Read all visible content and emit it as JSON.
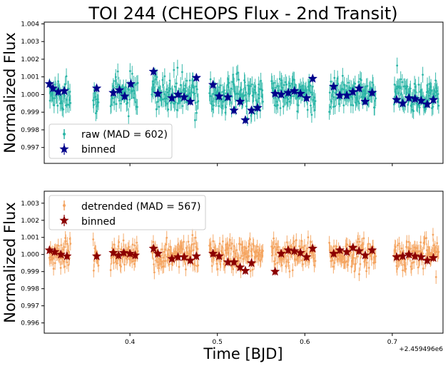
{
  "chart_data": [
    {
      "type": "scatter",
      "title": "TOI 244 (CHEOPS Flux - 2nd Transit)",
      "xlabel": "",
      "ylabel": "Normalized Flux",
      "xlim": [
        0.302,
        0.758
      ],
      "ylim": [
        0.9961,
        1.0041
      ],
      "xticks": [
        0.4,
        0.5,
        0.6,
        0.7
      ],
      "xtick_labels": [
        "",
        "",
        "",
        ""
      ],
      "yticks": [
        0.997,
        0.998,
        0.999,
        1.0,
        1.001,
        1.002,
        1.003,
        1.004
      ],
      "ytick_labels": [
        "0.997",
        "0.998",
        "0.999",
        "1.000",
        "1.001",
        "1.002",
        "1.003",
        "1.004"
      ],
      "legend": {
        "placement": "lower-left",
        "entries": [
          "raw (MAD = 602)",
          "binned"
        ]
      },
      "colors": {
        "raw": "#2ab5a6",
        "binned": "#00008b"
      },
      "raw_segments": [
        [
          0.308,
          0.332
        ],
        [
          0.358,
          0.364
        ],
        [
          0.378,
          0.409
        ],
        [
          0.425,
          0.478
        ],
        [
          0.491,
          0.552
        ],
        [
          0.562,
          0.612
        ],
        [
          0.628,
          0.681
        ],
        [
          0.702,
          0.753
        ]
      ],
      "raw_level": 1.0,
      "raw_scatter": 0.0009,
      "binned": {
        "x": [
          0.308,
          0.312,
          0.318,
          0.325,
          0.362,
          0.381,
          0.388,
          0.394,
          0.401,
          0.427,
          0.432,
          0.448,
          0.455,
          0.462,
          0.469,
          0.476,
          0.495,
          0.502,
          0.512,
          0.519,
          0.526,
          0.532,
          0.539,
          0.546,
          0.566,
          0.573,
          0.581,
          0.588,
          0.595,
          0.602,
          0.609,
          0.633,
          0.64,
          0.648,
          0.655,
          0.662,
          0.669,
          0.677,
          0.705,
          0.712,
          0.719,
          0.726,
          0.733,
          0.74,
          0.747
        ],
        "y": [
          1.0006,
          1.00035,
          1.00015,
          1.0002,
          1.00035,
          1.0001,
          1.00025,
          0.9999,
          1.0006,
          1.0013,
          1.00005,
          0.9998,
          1.0,
          0.99985,
          0.9996,
          1.00095,
          1.00055,
          0.9999,
          0.99985,
          0.9991,
          0.9996,
          0.99855,
          0.9991,
          0.99925,
          1.00005,
          1.0,
          1.0001,
          1.0002,
          1.00005,
          0.9998,
          1.0009,
          1.00045,
          0.99995,
          0.99995,
          1.00015,
          1.00035,
          0.9996,
          1.0001,
          0.9997,
          0.9995,
          0.9998,
          0.99975,
          0.99965,
          0.99945,
          0.9997
        ]
      }
    },
    {
      "type": "scatter",
      "title": "",
      "xlabel": "Time [BJD]",
      "ylabel": "Normalized Flux",
      "x_offset_label": "+2.459496e6",
      "xlim": [
        0.302,
        0.758
      ],
      "ylim": [
        0.9954,
        1.0037
      ],
      "xticks": [
        0.4,
        0.5,
        0.6,
        0.7
      ],
      "xtick_labels": [
        "0.4",
        "0.5",
        "0.6",
        "0.7"
      ],
      "yticks": [
        0.996,
        0.997,
        0.998,
        0.999,
        1.0,
        1.001,
        1.002,
        1.003
      ],
      "ytick_labels": [
        "0.996",
        "0.997",
        "0.998",
        "0.999",
        "1.000",
        "1.001",
        "1.002",
        "1.003"
      ],
      "legend": {
        "placement": "upper-left",
        "entries": [
          "detrended (MAD = 567)",
          "binned"
        ]
      },
      "colors": {
        "raw": "#f4a460",
        "binned": "#8b0000"
      },
      "raw_segments": [
        [
          0.308,
          0.332
        ],
        [
          0.358,
          0.364
        ],
        [
          0.378,
          0.409
        ],
        [
          0.425,
          0.478
        ],
        [
          0.491,
          0.552
        ],
        [
          0.562,
          0.612
        ],
        [
          0.628,
          0.681
        ],
        [
          0.702,
          0.753
        ]
      ],
      "raw_level": 1.0,
      "raw_scatter": 0.0008,
      "binned": {
        "x": [
          0.308,
          0.314,
          0.321,
          0.328,
          0.362,
          0.381,
          0.387,
          0.393,
          0.4,
          0.406,
          0.427,
          0.432,
          0.448,
          0.455,
          0.462,
          0.469,
          0.476,
          0.495,
          0.502,
          0.512,
          0.519,
          0.526,
          0.532,
          0.539,
          0.566,
          0.573,
          0.581,
          0.588,
          0.595,
          0.602,
          0.609,
          0.633,
          0.64,
          0.648,
          0.655,
          0.662,
          0.669,
          0.677,
          0.705,
          0.712,
          0.719,
          0.726,
          0.733,
          0.74,
          0.747
        ],
        "y": [
          1.00025,
          1.00015,
          1.0,
          0.9999,
          0.9999,
          1.0001,
          0.99995,
          1.0001,
          1.00005,
          0.99995,
          1.00035,
          1.00005,
          0.99975,
          0.99985,
          0.99985,
          0.99965,
          0.9999,
          1.00005,
          0.9999,
          0.99955,
          0.99955,
          0.99925,
          0.99905,
          0.9995,
          0.999,
          1.00005,
          1.00025,
          1.0002,
          1.0001,
          0.99985,
          1.00035,
          1.00005,
          1.00025,
          1.00015,
          1.0004,
          1.0002,
          0.99995,
          1.00025,
          0.99985,
          0.9999,
          1.0,
          0.9999,
          0.99985,
          0.99965,
          0.9998
        ]
      }
    }
  ]
}
